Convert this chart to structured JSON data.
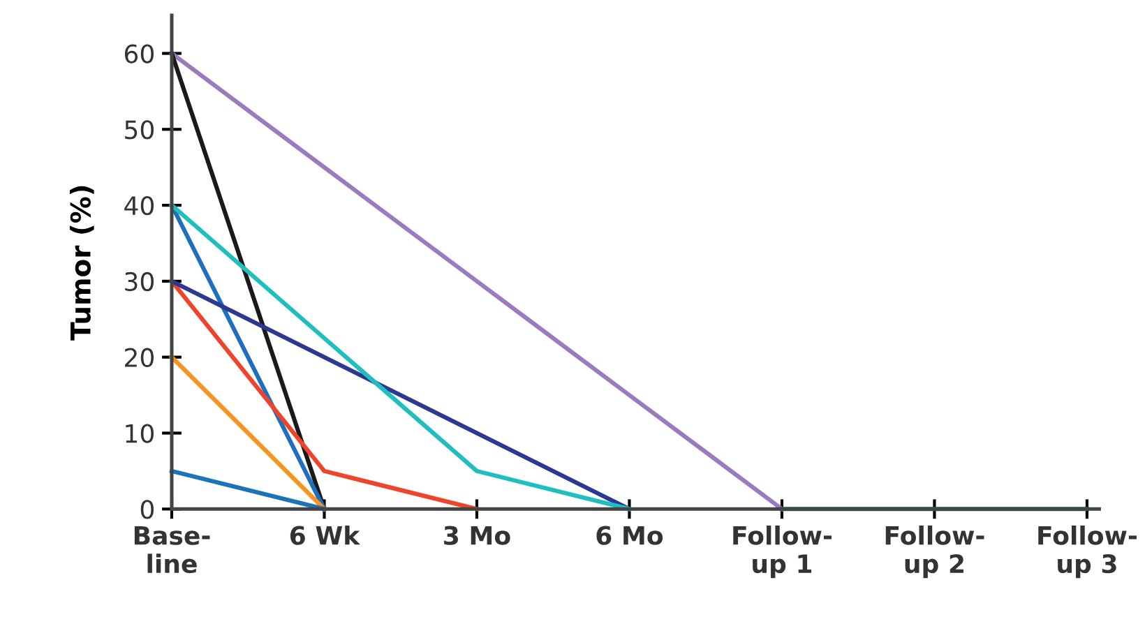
{
  "chart_data": {
    "type": "line",
    "ylabel": "Tumor (%)",
    "categories": [
      "Base-\nline",
      "6 Wk",
      "3 Mo",
      "6 Mo",
      "Follow-\nup 1",
      "Follow-\nup 2",
      "Follow-\nup 3"
    ],
    "ylim": [
      0,
      65
    ],
    "yticks": [
      0,
      10,
      20,
      30,
      40,
      50,
      60
    ],
    "grid": false,
    "marker": "none",
    "line_style": "solid",
    "series": [
      {
        "color": "#9b7bbf",
        "values": [
          60,
          45,
          30,
          15,
          0,
          null,
          null
        ]
      },
      {
        "color": "#1a1a1a",
        "values": [
          60,
          0,
          null,
          null,
          null,
          null,
          null
        ]
      },
      {
        "color": "#1f6fbf",
        "values": [
          40,
          0,
          null,
          null,
          null,
          null,
          null
        ]
      },
      {
        "color": "#f0442a",
        "values": [
          30,
          5,
          0,
          null,
          null,
          null,
          null
        ]
      },
      {
        "color": "#f7941d",
        "values": [
          20,
          0,
          null,
          null,
          null,
          null,
          null
        ]
      },
      {
        "color": "#1a75b8",
        "values": [
          5,
          0,
          null,
          null,
          null,
          null,
          null
        ]
      },
      {
        "color": "#2b3990",
        "values": [
          30,
          20,
          10,
          0,
          null,
          null,
          null
        ]
      },
      {
        "color": "#1fbfbf",
        "values": [
          40,
          22.5,
          5,
          0,
          null,
          null,
          null
        ]
      },
      {
        "color": "#0e6b6b",
        "values": [
          null,
          null,
          null,
          null,
          0,
          0,
          0
        ]
      }
    ]
  }
}
